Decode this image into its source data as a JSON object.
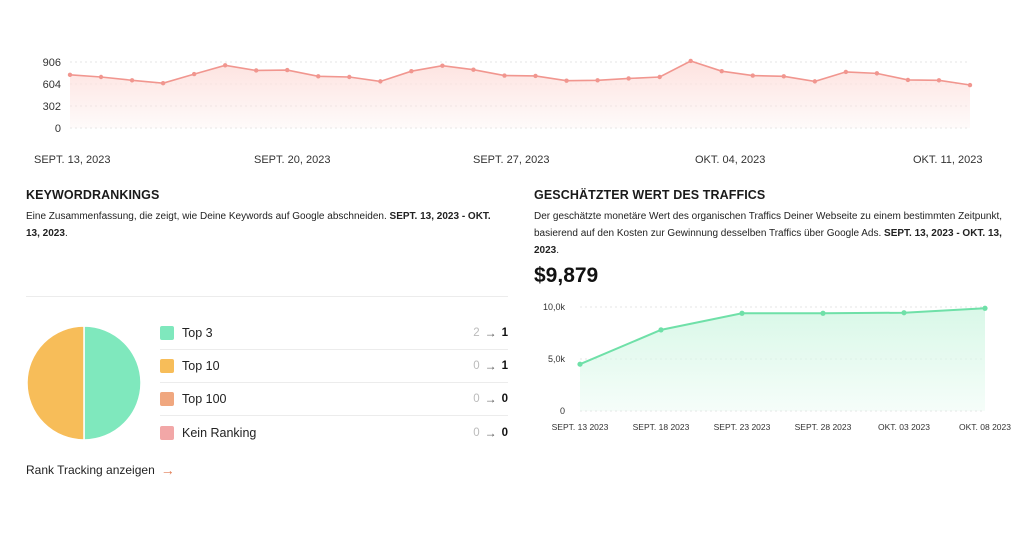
{
  "colors": {
    "top_line": "#f1968f",
    "top_fill": "#fde2df",
    "green_line": "#6fe0a8",
    "green_fill": "#d9f8e8",
    "pie_orange": "#f7bd59",
    "pie_green": "#7fe8bd",
    "top3": "#7fe8bd",
    "top10": "#f7bd59",
    "top100": "#f0a77f",
    "kein": "#f2a7a7",
    "link_arrow": "#e07b53"
  },
  "traffic_chart": {
    "chart_data": {
      "type": "area",
      "y_ticks": [
        "906",
        "604",
        "302",
        "0"
      ],
      "ylim": [
        0,
        906
      ],
      "x_tick_labels": [
        "SEPT. 13, 2023",
        "SEPT. 20, 2023",
        "SEPT. 27, 2023",
        "OKT. 04, 2023",
        "OKT. 11, 2023"
      ],
      "values": [
        730,
        700,
        655,
        615,
        740,
        860,
        790,
        795,
        710,
        700,
        640,
        780,
        855,
        800,
        720,
        715,
        650,
        655,
        680,
        700,
        920,
        780,
        720,
        710,
        640,
        770,
        750,
        660,
        655,
        590
      ]
    }
  },
  "keyword_section": {
    "heading": "KEYWORDRANKINGS",
    "desc_text": "Eine Zusammenfassung, die zeigt, wie Deine Keywords auf Google abschneiden. ",
    "desc_date": "SEPT. 13, 2023 - OKT. 13, 2023",
    "desc_end": ".",
    "pie": {
      "chart_data": {
        "type": "pie",
        "values": [
          50,
          50
        ],
        "categories": [
          "Top 3",
          "Top 10"
        ]
      }
    },
    "legend": [
      {
        "label": "Top 3",
        "from": "2",
        "arrow": "→",
        "to": "1"
      },
      {
        "label": "Top 10",
        "from": "0",
        "arrow": "→",
        "to": "1"
      },
      {
        "label": "Top 100",
        "from": "0",
        "arrow": "→",
        "to": "0"
      },
      {
        "label": "Kein Ranking",
        "from": "0",
        "arrow": "→",
        "to": "0"
      }
    ],
    "link_label": "Rank Tracking anzeigen",
    "link_arrow": "→"
  },
  "value_section": {
    "heading": "GESCHÄTZTER WERT DES TRAFFICS",
    "desc_text": "Der geschätzte monetäre Wert des organischen Traffics Deiner Webseite zu einem bestimmten Zeitpunkt, basierend auf den Kosten zur Gewinnung desselben Traffics über Google Ads. ",
    "desc_date": "SEPT. 13, 2023 - OKT. 13, 2023",
    "desc_end": ".",
    "value": "$9,879",
    "chart_data": {
      "type": "area",
      "y_ticks": [
        "10,0k",
        "5,0k",
        "0"
      ],
      "ylim": [
        0,
        10000
      ],
      "x_tick_labels": [
        "SEPT. 13 2023",
        "SEPT. 18 2023",
        "SEPT. 23 2023",
        "SEPT. 28 2023",
        "OKT. 03 2023",
        "OKT. 08 2023"
      ],
      "values": [
        4500,
        7800,
        9400,
        9400,
        9450,
        9879
      ]
    }
  }
}
